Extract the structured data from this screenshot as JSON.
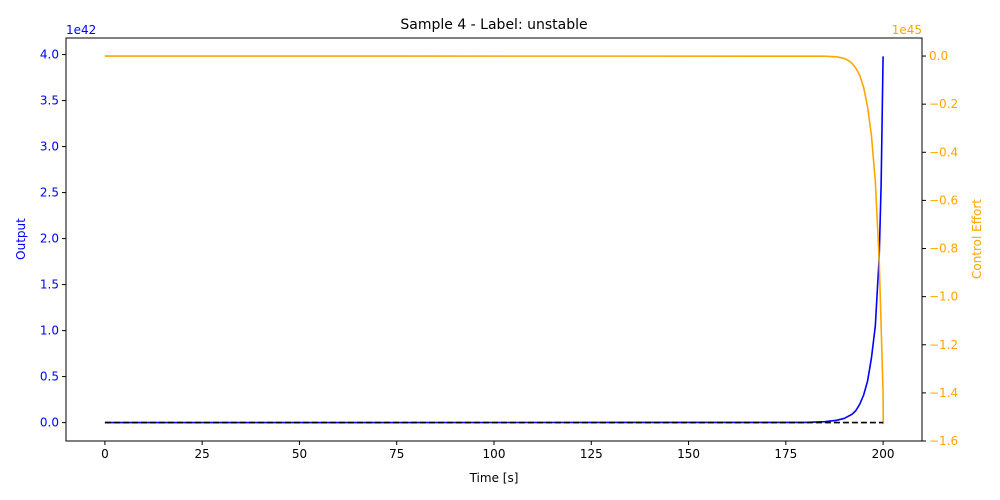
{
  "chart_data": {
    "type": "line",
    "title": "Sample 4 - Label: unstable",
    "xlabel": "Time [s]",
    "ylabel_left": "Output",
    "ylabel_right": "Control Effort",
    "offset_left": "1e42",
    "offset_right": "1e45",
    "xlim": [
      -10,
      210
    ],
    "ylim_left": [
      -0.2,
      4.18
    ],
    "ylim_right": [
      -1.6,
      0.075
    ],
    "x_ticks": [
      0,
      25,
      50,
      75,
      100,
      125,
      150,
      175,
      200
    ],
    "x_tick_labels": [
      "0",
      "25",
      "50",
      "75",
      "100",
      "125",
      "150",
      "175",
      "200"
    ],
    "y_left_ticks": [
      0,
      0.5,
      1.0,
      1.5,
      2.0,
      2.5,
      3.0,
      3.5,
      4.0
    ],
    "y_left_tick_labels": [
      "0.0",
      "0.5",
      "1.0",
      "1.5",
      "2.0",
      "2.5",
      "3.0",
      "3.5",
      "4.0"
    ],
    "y_right_ticks": [
      0,
      -0.2,
      -0.4,
      -0.6,
      -0.8,
      -1.0,
      -1.2,
      -1.4,
      -1.6
    ],
    "y_right_tick_labels": [
      "0.0",
      "−0.2",
      "−0.4",
      "−0.6",
      "−0.8",
      "−1.0",
      "−1.2",
      "−1.4",
      "−1.6"
    ],
    "colors": {
      "output": "#0000ff",
      "control": "#ffa500",
      "reference": "#000000",
      "left_axis": "#0000ff",
      "right_axis": "#ffa500"
    },
    "series": [
      {
        "axis": "left",
        "style": "solid",
        "color": "#0000ff",
        "x": [
          0,
          180,
          185,
          188,
          190,
          192,
          193,
          194,
          195,
          196,
          197,
          198,
          199,
          199.5,
          200
        ],
        "y": [
          0,
          0.002,
          0.01,
          0.025,
          0.045,
          0.09,
          0.13,
          0.2,
          0.3,
          0.45,
          0.7,
          1.05,
          1.8,
          2.6,
          3.98
        ]
      },
      {
        "axis": "right",
        "style": "solid",
        "color": "#ffa500",
        "x": [
          0,
          185,
          188,
          190,
          191,
          192,
          193,
          194,
          195,
          196,
          197,
          198,
          199,
          200,
          200.05
        ],
        "y": [
          0,
          -0.0005,
          -0.003,
          -0.01,
          -0.018,
          -0.03,
          -0.05,
          -0.08,
          -0.13,
          -0.21,
          -0.33,
          -0.52,
          -0.85,
          -1.4,
          -1.53
        ]
      },
      {
        "axis": "left",
        "style": "dashed",
        "color": "#000000",
        "x": [
          0,
          200
        ],
        "y": [
          0,
          0
        ]
      }
    ]
  }
}
